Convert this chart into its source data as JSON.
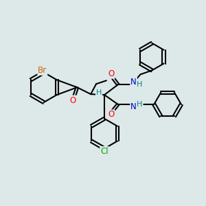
{
  "bg": "#dde8e8",
  "bc": "#000000",
  "O": "#ff0000",
  "N": "#0000cc",
  "Br": "#cc6600",
  "Cl": "#00aa00",
  "H": "#008888",
  "figsize": [
    3.0,
    3.0
  ],
  "dpi": 100
}
